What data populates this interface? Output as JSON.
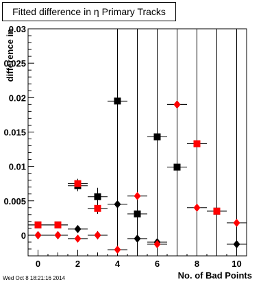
{
  "chart_data": {
    "type": "scatter",
    "title": "Fitted difference in  η Primary Tracks",
    "xlabel": "No. of Bad Points",
    "ylabel": "difference in",
    "xlim": [
      -0.5,
      10.5
    ],
    "ylim": [
      -0.003,
      0.03
    ],
    "x_ticks": [
      0,
      2,
      4,
      6,
      8,
      10
    ],
    "y_ticks": [
      0,
      0.005,
      0.01,
      0.015,
      0.02,
      0.025,
      0.03
    ],
    "y_tick_labels": [
      "0",
      "0.005",
      "0.01",
      "0.015",
      "0.02",
      "0.025",
      "0.03"
    ],
    "grid": false,
    "series": [
      {
        "marker": "square",
        "color": "#000000",
        "points": [
          {
            "x": 0,
            "y": 0.0015,
            "yerr": 0
          },
          {
            "x": 1,
            "y": 0.0015,
            "yerr": 0
          },
          {
            "x": 2,
            "y": 0.0072,
            "yerr": 0.0008
          },
          {
            "x": 3,
            "y": 0.0056,
            "yerr": 0.0013
          },
          {
            "x": 4,
            "y": 0.0195,
            "yerr": 0.04
          },
          {
            "x": 5,
            "y": 0.0031,
            "yerr": 0.04
          },
          {
            "x": 6,
            "y": 0.0143,
            "yerr": 0.04
          },
          {
            "x": 7,
            "y": 0.0099,
            "yerr": 0.04
          },
          {
            "x": 8,
            "y": 0.0133,
            "yerr": 0.04
          },
          {
            "x": 9,
            "y": 0.0035,
            "yerr": 0.04
          }
        ]
      },
      {
        "marker": "square",
        "color": "#ff0000",
        "points": [
          {
            "x": 0,
            "y": 0.0015,
            "yerr": 0
          },
          {
            "x": 1,
            "y": 0.0015,
            "yerr": 0
          },
          {
            "x": 2,
            "y": 0.0075,
            "yerr": 0.0007
          },
          {
            "x": 3,
            "y": 0.0039,
            "yerr": 0.0008
          },
          {
            "x": 8,
            "y": 0.0133,
            "yerr": 0.0052
          },
          {
            "x": 9,
            "y": 0.0035,
            "yerr": 0
          }
        ]
      },
      {
        "marker": "diamond",
        "color": "#000000",
        "points": [
          {
            "x": 0,
            "y": 0.0,
            "yerr": 0
          },
          {
            "x": 1,
            "y": 0.0,
            "yerr": 0
          },
          {
            "x": 2,
            "y": 0.0009,
            "yerr": 0.0005
          },
          {
            "x": 3,
            "y": 0.0,
            "yerr": 0.0004
          },
          {
            "x": 4,
            "y": 0.0045,
            "yerr": 0.04
          },
          {
            "x": 5,
            "y": -0.0005,
            "yerr": 0.04
          },
          {
            "x": 6,
            "y": -0.001,
            "yerr": 0.04
          },
          {
            "x": 7,
            "y": 0.019,
            "yerr": 0.04
          },
          {
            "x": 10,
            "y": -0.0013,
            "yerr": 0.04
          }
        ]
      },
      {
        "marker": "diamond",
        "color": "#ff0000",
        "points": [
          {
            "x": 0,
            "y": 0.0,
            "yerr": 0
          },
          {
            "x": 1,
            "y": 0.0,
            "yerr": 0
          },
          {
            "x": 2,
            "y": -0.0005,
            "yerr": 0
          },
          {
            "x": 3,
            "y": 0.0,
            "yerr": 0.0006
          },
          {
            "x": 4,
            "y": -0.0021,
            "yerr": 0
          },
          {
            "x": 5,
            "y": 0.0057,
            "yerr": 0
          },
          {
            "x": 6,
            "y": -0.0013,
            "yerr": 0.0003
          },
          {
            "x": 7,
            "y": 0.019,
            "yerr": 0.0075
          },
          {
            "x": 8,
            "y": 0.004,
            "yerr": 0.0035
          },
          {
            "x": 10,
            "y": 0.0018,
            "yerr": 0.0018
          }
        ]
      }
    ]
  },
  "footer": {
    "timestamp": "Wed Oct  8 18:21:16 2014"
  }
}
